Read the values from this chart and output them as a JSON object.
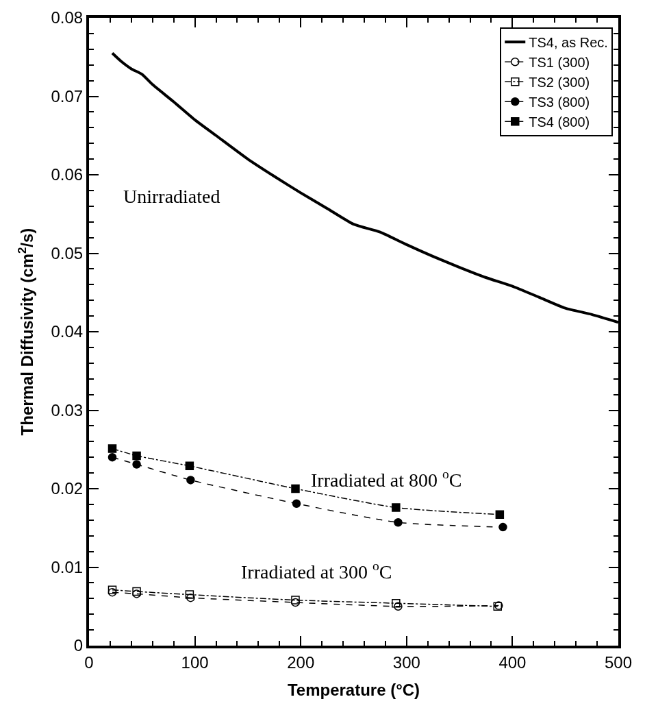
{
  "chart_data": {
    "type": "line",
    "xlabel": "Temperature (°C)",
    "ylabel": "Thermal Diffusivity (cm$^{2}$/s)",
    "xlim": [
      0,
      500
    ],
    "ylim": [
      0,
      0.08
    ],
    "xticks": [
      0,
      {
        "value": 20,
        "label": null
      },
      {
        "value": 40,
        "label": null
      },
      {
        "value": 60,
        "label": null
      },
      {
        "value": 80,
        "label": null
      },
      100,
      {
        "value": 120,
        "label": null
      },
      {
        "value": 140,
        "label": null
      },
      {
        "value": 160,
        "label": null
      },
      {
        "value": 180,
        "label": null
      },
      200,
      {
        "value": 220,
        "label": null
      },
      {
        "value": 240,
        "label": null
      },
      {
        "value": 260,
        "label": null
      },
      {
        "value": 280,
        "label": null
      },
      300,
      {
        "value": 320,
        "label": null
      },
      {
        "value": 340,
        "label": null
      },
      {
        "value": 360,
        "label": null
      },
      {
        "value": 380,
        "label": null
      },
      400,
      {
        "value": 420,
        "label": null
      },
      {
        "value": 440,
        "label": null
      },
      {
        "value": 460,
        "label": null
      },
      {
        "value": 480,
        "label": null
      },
      500
    ],
    "yticks": [
      0,
      {
        "value": 0.002,
        "label": null
      },
      {
        "value": 0.004,
        "label": null
      },
      {
        "value": 0.006,
        "label": null
      },
      {
        "value": 0.008,
        "label": null
      },
      0.01,
      {
        "value": 0.012,
        "label": null
      },
      {
        "value": 0.014,
        "label": null
      },
      {
        "value": 0.016,
        "label": null
      },
      {
        "value": 0.018,
        "label": null
      },
      0.02,
      {
        "value": 0.022,
        "label": null
      },
      {
        "value": 0.024,
        "label": null
      },
      {
        "value": 0.026,
        "label": null
      },
      {
        "value": 0.028,
        "label": null
      },
      0.03,
      {
        "value": 0.032,
        "label": null
      },
      {
        "value": 0.034,
        "label": null
      },
      {
        "value": 0.036,
        "label": null
      },
      {
        "value": 0.038,
        "label": null
      },
      0.04,
      {
        "value": 0.042,
        "label": null
      },
      {
        "value": 0.044,
        "label": null
      },
      {
        "value": 0.046,
        "label": null
      },
      {
        "value": 0.048,
        "label": null
      },
      0.05,
      {
        "value": 0.052,
        "label": null
      },
      {
        "value": 0.054,
        "label": null
      },
      {
        "value": 0.056,
        "label": null
      },
      {
        "value": 0.058,
        "label": null
      },
      0.06,
      {
        "value": 0.062,
        "label": null
      },
      {
        "value": 0.064,
        "label": null
      },
      {
        "value": 0.066,
        "label": null
      },
      {
        "value": 0.068,
        "label": null
      },
      0.07,
      {
        "value": 0.072,
        "label": null
      },
      {
        "value": 0.074,
        "label": null
      },
      {
        "value": 0.076,
        "label": null
      },
      {
        "value": 0.078,
        "label": null
      },
      0.08
    ],
    "legend": "top right",
    "series": [
      {
        "name": "TS4, as Rec.",
        "color": "#000000",
        "line_style": "solid",
        "marker": "none",
        "x": [
          22,
          30,
          40,
          50,
          60,
          80,
          100,
          120,
          150,
          175,
          200,
          225,
          250,
          275,
          300,
          325,
          350,
          375,
          400,
          425,
          450,
          475,
          500
        ],
        "values": [
          0.0755,
          0.0745,
          0.0735,
          0.0728,
          0.0715,
          0.0693,
          0.067,
          0.065,
          0.062,
          0.0598,
          0.0577,
          0.0557,
          0.0537,
          0.0527,
          0.0511,
          0.0496,
          0.0482,
          0.0469,
          0.0458,
          0.0444,
          0.043,
          0.0422,
          0.0412
        ]
      },
      {
        "name": "TS1 (300)",
        "color": "#000000",
        "line_style": "dashed",
        "marker": "circle-open",
        "x": [
          22,
          45,
          96,
          195,
          292,
          387
        ],
        "values": [
          0.0068,
          0.0066,
          0.0061,
          0.0055,
          0.005,
          0.0051
        ]
      },
      {
        "name": "TS2 (300)",
        "color": "#000000",
        "line_style": "dashdot",
        "marker": "square-open",
        "x": [
          22,
          45,
          95,
          195,
          290,
          386
        ],
        "values": [
          0.0071,
          0.0069,
          0.0065,
          0.0058,
          0.0054,
          0.005
        ]
      },
      {
        "name": "TS3 (800)",
        "color": "#000000",
        "line_style": "dashed",
        "marker": "circle",
        "x": [
          22,
          45,
          96,
          196,
          292,
          391
        ],
        "values": [
          0.024,
          0.0231,
          0.0211,
          0.0181,
          0.0157,
          0.0151
        ]
      },
      {
        "name": "TS4 (800)",
        "color": "#000000",
        "line_style": "dashdot",
        "marker": "square",
        "x": [
          22,
          45,
          95,
          195,
          290,
          388
        ],
        "values": [
          0.0251,
          0.0242,
          0.0229,
          0.02,
          0.0176,
          0.0167
        ]
      }
    ],
    "annotations": [
      "Unirradiated",
      "Irradiated at 800 $^{o}$C",
      "Irradiated at 300 $^{o}$C"
    ]
  }
}
